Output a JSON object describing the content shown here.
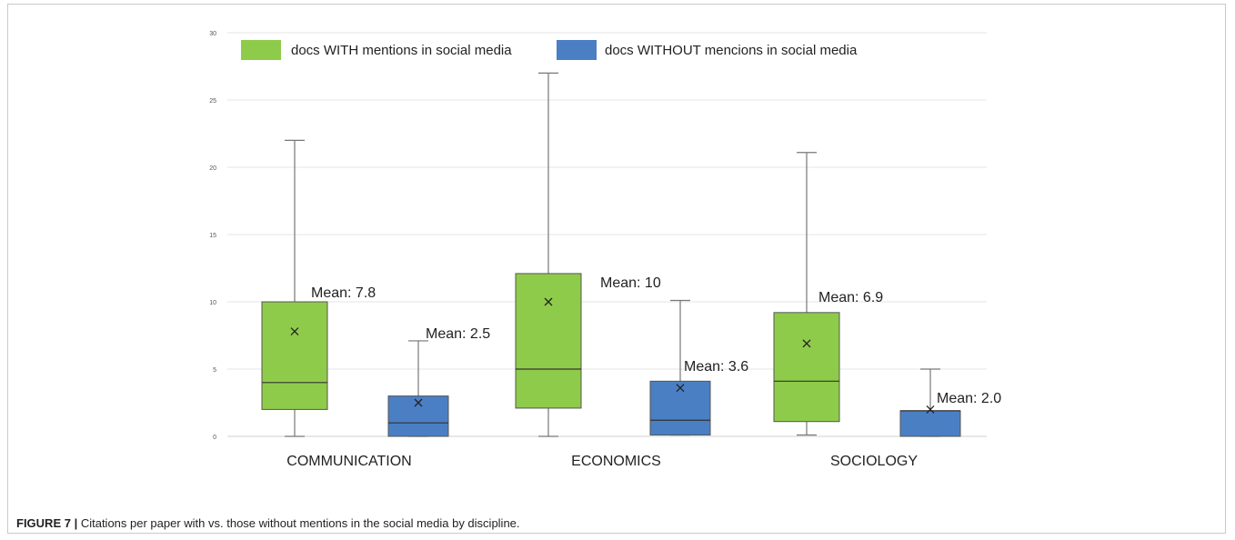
{
  "caption": {
    "label": "FIGURE 7 |",
    "text": "Citations per paper with vs. those without mentions in the social media by discipline."
  },
  "chart_data": {
    "type": "box",
    "categories": [
      "COMMUNICATION",
      "ECONOMICS",
      "SOCIOLOGY"
    ],
    "ylim": [
      0,
      30
    ],
    "yticks": [
      0,
      5,
      10,
      15,
      20,
      25,
      30
    ],
    "grid": true,
    "legend_position": "top-left",
    "series": [
      {
        "name": "docs WITH mentions in social media",
        "color": "#8fcb4a",
        "boxes": [
          {
            "min": 0,
            "q1": 2,
            "median": 4,
            "q3": 10,
            "max": 22,
            "mean": 7.8,
            "mean_label": "Mean: 7.8"
          },
          {
            "min": 0,
            "q1": 2.1,
            "median": 5,
            "q3": 12.1,
            "max": 27,
            "mean": 10,
            "mean_label": "Mean: 10"
          },
          {
            "min": 0.1,
            "q1": 1.1,
            "median": 4.1,
            "q3": 9.2,
            "max": 21.1,
            "mean": 6.9,
            "mean_label": "Mean: 6.9"
          }
        ]
      },
      {
        "name": "docs WITHOUT mencions in social media",
        "color": "#4a7fc3",
        "boxes": [
          {
            "min": 0,
            "q1": 0,
            "median": 1,
            "q3": 3,
            "max": 7.1,
            "mean": 2.5,
            "mean_label": "Mean: 2.5"
          },
          {
            "min": 0.1,
            "q1": 0.1,
            "median": 1.2,
            "q3": 4.1,
            "max": 10.1,
            "mean": 3.6,
            "mean_label": "Mean: 3.6"
          },
          {
            "min": 0,
            "q1": 0,
            "median": 1.9,
            "q3": 1.9,
            "max": 5,
            "mean": 2.0,
            "mean_label": "Mean: 2.0"
          }
        ]
      }
    ]
  }
}
